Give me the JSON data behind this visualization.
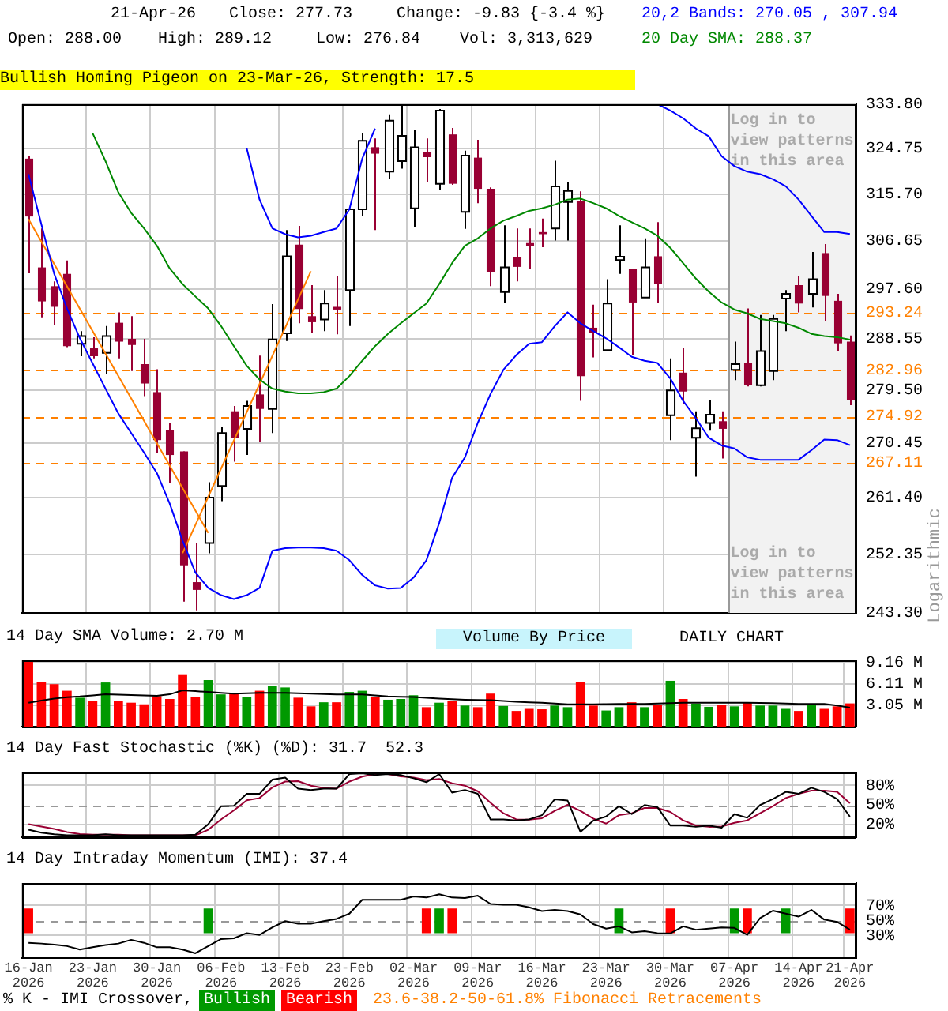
{
  "chart_data": [
    {
      "type": "candlestick",
      "ylabel": "Logarithmic",
      "log": "y",
      "grid": true,
      "tick_labels": "y",
      "legend": "top right",
      "annotations": [
        "21-Apr-26",
        "Close: 277.73",
        "Change: -9.83 {-3.4 %}",
        "Open: 288.00",
        "High: 289.12",
        "Low: 276.84",
        "Vol: 3,313,629",
        "Bullish Homing Pigeon on 23-Mar-26, Strength: 17.5"
      ],
      "categories": [
        "16-Jan\n2026",
        null,
        null,
        null,
        null,
        "23-Jan\n2026",
        null,
        null,
        null,
        null,
        "30-Jan\n2026",
        null,
        null,
        null,
        null,
        "06-Feb\n2026",
        null,
        null,
        null,
        null,
        "13-Feb\n2026",
        null,
        null,
        null,
        null,
        "23-Feb\n2026",
        null,
        null,
        null,
        null,
        "02-Mar\n2026",
        null,
        null,
        null,
        null,
        "09-Mar\n2026",
        null,
        null,
        null,
        null,
        "16-Mar\n2026",
        null,
        null,
        null,
        null,
        "23-Mar\n2026",
        null,
        null,
        null,
        null,
        "30-Mar\n2026",
        null,
        null,
        null,
        null,
        "07-Apr\n2026",
        null,
        null,
        null,
        null,
        "14-Apr\n2026",
        null,
        null,
        null,
        "21-Apr\n2026"
      ],
      "ylim": [
        243.3,
        333.8
      ],
      "yticks": [
        {
          "value": 243.3,
          "label": "243.30"
        },
        252.35,
        {
          "value": 261.4,
          "label": "261.40"
        },
        270.45,
        {
          "value": 279.5,
          "label": "279.50"
        },
        288.55,
        {
          "value": 297.6,
          "label": "297.60"
        },
        306.65,
        {
          "value": 315.7,
          "label": "315.70"
        },
        324.75,
        {
          "value": 333.8,
          "label": "333.80"
        }
      ],
      "ohlc": [
        [
          322.7,
          323.2,
          300.5,
          311.3
        ],
        [
          301.6,
          309.0,
          292.4,
          295.3
        ],
        [
          298.1,
          299.0,
          291.0,
          294.3
        ],
        [
          300.4,
          302.9,
          287.0,
          287.2
        ],
        [
          287.6,
          289.9,
          285.4,
          289.0
        ],
        [
          286.8,
          288.8,
          285.0,
          285.4
        ],
        [
          286.0,
          290.8,
          282.2,
          289.0
        ],
        [
          291.4,
          293.3,
          285.0,
          288.0
        ],
        [
          288.5,
          292.6,
          282.8,
          287.4
        ],
        [
          284.0,
          288.5,
          278.4,
          280.6
        ],
        [
          279.1,
          283.1,
          268.8,
          270.9
        ],
        [
          272.6,
          273.8,
          263.7,
          268.4
        ],
        [
          269.0,
          269.0,
          245.0,
          250.6
        ],
        [
          248.0,
          254.1,
          243.7,
          246.8
        ],
        [
          254.1,
          263.9,
          252.5,
          261.4
        ],
        [
          263.3,
          273.1,
          260.8,
          272.1
        ],
        [
          275.8,
          276.7,
          267.3,
          271.3
        ],
        [
          272.8,
          277.6,
          268.4,
          276.7
        ],
        [
          278.7,
          285.5,
          270.6,
          276.2
        ],
        [
          276.2,
          294.8,
          272.1,
          288.4
        ],
        [
          289.5,
          308.7,
          288.1,
          303.7
        ],
        [
          305.9,
          309.5,
          291.3,
          293.9
        ],
        [
          292.6,
          298.3,
          289.5,
          291.5
        ],
        [
          292.0,
          297.4,
          289.9,
          294.9
        ],
        [
          294.3,
          299.9,
          289.3,
          293.8
        ],
        [
          297.4,
          312.9,
          290.8,
          312.7
        ],
        [
          312.7,
          327.8,
          311.3,
          326.3
        ],
        [
          325.0,
          326.8,
          308.7,
          323.7
        ],
        [
          320.1,
          331.7,
          318.6,
          330.4
        ],
        [
          322.2,
          333.8,
          320.7,
          327.3
        ],
        [
          312.9,
          328.6,
          309.2,
          325.0
        ],
        [
          324.0,
          326.8,
          318.0,
          323.0
        ],
        [
          317.7,
          332.8,
          316.5,
          332.5
        ],
        [
          327.6,
          328.9,
          317.5,
          317.7
        ],
        [
          312.2,
          324.3,
          308.9,
          323.3
        ],
        [
          322.9,
          326.5,
          313.9,
          316.7
        ],
        [
          316.7,
          317.0,
          298.1,
          300.7
        ],
        [
          297.0,
          309.6,
          295.1,
          301.6
        ],
        [
          303.6,
          309.0,
          299.0,
          301.7
        ],
        [
          306.2,
          309.0,
          301.3,
          305.7
        ],
        [
          308.3,
          310.9,
          305.4,
          307.9
        ],
        [
          309.0,
          322.3,
          306.7,
          317.2
        ],
        [
          314.1,
          318.1,
          306.7,
          316.3
        ],
        [
          314.4,
          316.2,
          277.6,
          281.9
        ],
        [
          290.5,
          294.7,
          285.2,
          289.6
        ],
        [
          286.5,
          299.4,
          286.5,
          294.9
        ],
        [
          303.0,
          309.6,
          300.4,
          303.6
        ],
        [
          301.3,
          301.3,
          285.6,
          295.1
        ],
        [
          296.0,
          307.1,
          296.0,
          301.6
        ],
        [
          303.7,
          310.2,
          295.1,
          298.5
        ],
        [
          275.1,
          285.0,
          270.9,
          279.4
        ],
        [
          282.5,
          286.8,
          277.1,
          279.2
        ],
        [
          271.3,
          275.8,
          264.8,
          272.9
        ],
        [
          273.8,
          277.8,
          272.5,
          275.2
        ],
        [
          274.1,
          275.8,
          267.8,
          272.8
        ],
        [
          283.0,
          288.0,
          281.2,
          284.0
        ],
        [
          284.2,
          294.0,
          280.1,
          280.3
        ],
        [
          280.3,
          292.8,
          280.1,
          286.3
        ],
        [
          282.8,
          292.8,
          281.2,
          292.1
        ],
        [
          295.8,
          297.4,
          289.9,
          296.7
        ],
        [
          298.3,
          299.9,
          293.3,
          294.9
        ],
        [
          296.7,
          304.5,
          294.2,
          299.4
        ],
        [
          304.3,
          306.0,
          291.7,
          296.3
        ],
        [
          295.4,
          296.7,
          286.3,
          287.7
        ],
        [
          288.0,
          289.12,
          276.84,
          277.73
        ]
      ],
      "series": [
        {
          "type": "line",
          "color": "#0000ff",
          "values": [
            null,
            null,
            null,
            null,
            null,
            null,
            null,
            null,
            null,
            null,
            null,
            null,
            null,
            null,
            null,
            null,
            null,
            324.8,
            314.6,
            309.0,
            307.9,
            307.3,
            307.6,
            308.3,
            309.0,
            312.7,
            322.7,
            328.8,
            null,
            null,
            null,
            null,
            null,
            null,
            null,
            null,
            null,
            null,
            null,
            null,
            null,
            null,
            null,
            null,
            null,
            null,
            null,
            null,
            null,
            333.8,
            332.5,
            330.9,
            328.8,
            327.2,
            323.2,
            321.2,
            320.1,
            319.6,
            318.6,
            317.2,
            314.6,
            311.4,
            308.3,
            308.3,
            307.94
          ]
        },
        {
          "type": "line",
          "name": "20,2 Bands: 270.05 , 307.94",
          "color": "#0000ff",
          "values": [
            319.6,
            309.8,
            300.4,
            294.0,
            288.6,
            284.1,
            279.7,
            275.4,
            272.1,
            268.8,
            265.4,
            260.4,
            254.5,
            249.5,
            247.1,
            246.0,
            245.4,
            246.0,
            247.1,
            252.9,
            253.3,
            253.4,
            253.4,
            253.3,
            252.9,
            251.4,
            249.1,
            247.5,
            247.0,
            247.1,
            248.7,
            251.4,
            257.3,
            264.6,
            268.0,
            273.8,
            278.8,
            283.0,
            285.6,
            287.6,
            287.9,
            290.8,
            293.3,
            291.3,
            289.9,
            288.6,
            287.0,
            285.3,
            284.6,
            284.2,
            281.5,
            277.6,
            274.6,
            271.3,
            270.0,
            269.5,
            268.0,
            267.6,
            267.6,
            267.6,
            267.6,
            269.2,
            271.0,
            270.9,
            270.05
          ]
        },
        {
          "type": "line",
          "name": "20 Day SMA: 288.37",
          "color": "#008800",
          "values": [
            null,
            null,
            null,
            null,
            null,
            327.8,
            322.2,
            316.0,
            312.0,
            309.0,
            305.7,
            301.4,
            298.5,
            296.2,
            294.0,
            290.8,
            287.2,
            283.7,
            281.3,
            279.7,
            279.2,
            278.9,
            278.9,
            279.1,
            279.7,
            281.9,
            284.6,
            287.2,
            289.4,
            291.3,
            293.1,
            294.9,
            298.5,
            302.4,
            305.7,
            307.1,
            309.0,
            310.5,
            311.4,
            312.4,
            312.9,
            313.6,
            314.6,
            314.8,
            313.9,
            312.9,
            311.4,
            310.2,
            309.0,
            307.6,
            305.3,
            302.4,
            299.5,
            297.1,
            295.1,
            293.8,
            293.1,
            292.1,
            291.7,
            291.3,
            290.5,
            289.4,
            289.0,
            288.8,
            288.37
          ]
        },
        {
          "type": "line",
          "color": "#ff8000",
          "values": [
            310.8,
            null,
            null,
            null,
            null,
            null,
            null,
            null,
            null,
            null,
            null,
            null,
            null,
            null,
            255.7,
            null,
            null,
            null,
            null,
            null,
            null,
            null,
            null,
            null,
            null,
            null,
            null,
            null,
            null,
            null,
            null,
            null,
            null,
            null,
            null,
            null,
            null,
            null,
            null,
            null,
            null,
            null,
            null,
            null,
            null,
            null,
            null,
            null,
            null,
            null,
            null,
            null,
            null,
            null,
            null,
            null,
            null,
            null,
            null,
            null,
            null,
            null,
            null,
            null,
            null
          ]
        },
        {
          "type": "line",
          "color": "#ff8000",
          "values": [
            null,
            null,
            null,
            null,
            null,
            null,
            null,
            null,
            null,
            null,
            null,
            null,
            252.5,
            null,
            null,
            null,
            null,
            null,
            null,
            null,
            null,
            null,
            300.9,
            null,
            null,
            null,
            null,
            null,
            null,
            null,
            null,
            null,
            null,
            null,
            null,
            null,
            null,
            null,
            null,
            null,
            null,
            null,
            null,
            null,
            null,
            null,
            null,
            null,
            null,
            null,
            null,
            null,
            null,
            null,
            null,
            null,
            null,
            null,
            null,
            null,
            null,
            null,
            null,
            null,
            null
          ]
        }
      ],
      "ref_lines": [
        {
          "axis": "y",
          "value": 293.24,
          "label": "293.24",
          "color": "#ff8000",
          "line_style": "dashed"
        },
        {
          "axis": "y",
          "value": 282.96,
          "label": "282.96",
          "color": "#ff8000",
          "line_style": "dashed"
        },
        {
          "axis": "y",
          "value": 274.92,
          "label": "274.92",
          "color": "#ff8000",
          "line_style": "dashed"
        },
        {
          "axis": "y",
          "value": 267.11,
          "label": "267.11",
          "color": "#ff8000",
          "line_style": "dashed"
        }
      ],
      "bands": [
        {
          "axis": "x",
          "from": "07-Apr\n2026",
          "to": "21-Apr\n2026",
          "label": "Log in to view patterns in this area",
          "color": "#f2f2f2"
        }
      ]
    },
    {
      "type": "bar",
      "title": "14 Day SMA Volume: 2.70 M",
      "grid": true,
      "tick_labels": "y",
      "annotations": [
        "Volume By Price",
        "DAILY CHART"
      ],
      "categories": [
        "16-Jan\n2026",
        null,
        null,
        null,
        null,
        "23-Jan\n2026",
        null,
        null,
        null,
        null,
        "30-Jan\n2026",
        null,
        null,
        null,
        null,
        "06-Feb\n2026",
        null,
        null,
        null,
        null,
        "13-Feb\n2026",
        null,
        null,
        null,
        null,
        "23-Feb\n2026",
        null,
        null,
        null,
        null,
        "02-Mar\n2026",
        null,
        null,
        null,
        null,
        "09-Mar\n2026",
        null,
        null,
        null,
        null,
        "16-Mar\n2026",
        null,
        null,
        null,
        null,
        "23-Mar\n2026",
        null,
        null,
        null,
        null,
        "30-Mar\n2026",
        null,
        null,
        null,
        null,
        "07-Apr\n2026",
        null,
        null,
        null,
        null,
        "14-Apr\n2026",
        null,
        null,
        null,
        "21-Apr\n2026"
      ],
      "ylim": [
        0,
        9.45
      ],
      "yticks": [
        {
          "value": 3.05,
          "label": "3.05 M"
        },
        {
          "value": 6.11,
          "label": "6.11 M"
        },
        {
          "value": 9.16,
          "label": "9.16 M"
        }
      ],
      "series": [
        {
          "type": "bar",
          "values": [
            9.3,
            6.34,
            6.05,
            5.11,
            4.12,
            3.65,
            6.29,
            3.65,
            3.41,
            3.18,
            4.35,
            3.94,
            7.46,
            4.23,
            6.64,
            4.59,
            4.82,
            4.23,
            5.11,
            5.76,
            5.58,
            4.12,
            2.89,
            3.47,
            3.47,
            4.94,
            5.11,
            4.23,
            3.83,
            3.94,
            4.47,
            2.77,
            3.41,
            3.65,
            3.0,
            2.77,
            4.7,
            2.94,
            2.24,
            2.53,
            2.47,
            3.0,
            2.77,
            6.34,
            3.0,
            2.3,
            2.77,
            3.47,
            2.77,
            3.13,
            6.53,
            3.94,
            3.29,
            2.82,
            3.06,
            2.89,
            3.41,
            3.0,
            3.0,
            2.53,
            2.24,
            3.18,
            2.53,
            2.89,
            3.31
          ],
          "colors": [
            "#ff0000",
            "#ff0000",
            "#ff0000",
            "#ff0000",
            "#009900",
            "#ff0000",
            "#009900",
            "#ff0000",
            "#ff0000",
            "#ff0000",
            "#ff0000",
            "#ff0000",
            "#ff0000",
            "#ff0000",
            "#009900",
            "#009900",
            "#ff0000",
            "#009900",
            "#ff0000",
            "#009900",
            "#009900",
            "#ff0000",
            "#ff0000",
            "#009900",
            "#ff0000",
            "#009900",
            "#009900",
            "#ff0000",
            "#009900",
            "#009900",
            "#009900",
            "#ff0000",
            "#009900",
            "#ff0000",
            "#009900",
            "#ff0000",
            "#ff0000",
            "#009900",
            "#ff0000",
            "#ff0000",
            "#ff0000",
            "#009900",
            "#009900",
            "#ff0000",
            "#ff0000",
            "#009900",
            "#009900",
            "#ff0000",
            "#009900",
            "#ff0000",
            "#009900",
            "#ff0000",
            "#009900",
            "#009900",
            "#ff0000",
            "#009900",
            "#ff0000",
            "#009900",
            "#009900",
            "#009900",
            "#ff0000",
            "#009900",
            "#ff0000",
            "#ff0000",
            "#ff0000"
          ]
        },
        {
          "type": "line",
          "color": "#000000",
          "values": [
            3.4,
            3.7,
            4.0,
            4.2,
            4.3,
            4.45,
            4.6,
            4.55,
            4.5,
            4.45,
            4.4,
            4.6,
            5.17,
            5.05,
            4.94,
            4.82,
            4.7,
            4.76,
            4.82,
            4.82,
            4.82,
            4.76,
            4.7,
            4.65,
            4.59,
            4.59,
            4.59,
            4.45,
            4.3,
            4.26,
            4.23,
            4.1,
            4.0,
            3.9,
            3.83,
            3.8,
            3.77,
            3.65,
            3.53,
            3.47,
            3.41,
            3.3,
            3.18,
            3.18,
            3.18,
            3.2,
            3.24,
            3.24,
            3.24,
            3.3,
            3.36,
            3.4,
            3.41,
            3.41,
            3.41,
            3.41,
            3.41,
            3.38,
            3.36,
            3.3,
            3.24,
            3.24,
            3.24,
            3.0,
            2.7
          ]
        }
      ]
    },
    {
      "type": "line",
      "title": "14 Day Fast Stochastic (%K) (%D): 31.7  52.3",
      "grid": true,
      "tick_labels": "y",
      "categories": [
        "16-Jan\n2026",
        null,
        null,
        null,
        null,
        "23-Jan\n2026",
        null,
        null,
        null,
        null,
        "30-Jan\n2026",
        null,
        null,
        null,
        null,
        "06-Feb\n2026",
        null,
        null,
        null,
        null,
        "13-Feb\n2026",
        null,
        null,
        null,
        null,
        "23-Feb\n2026",
        null,
        null,
        null,
        null,
        "02-Mar\n2026",
        null,
        null,
        null,
        null,
        "09-Mar\n2026",
        null,
        null,
        null,
        null,
        "16-Mar\n2026",
        null,
        null,
        null,
        null,
        "23-Mar\n2026",
        null,
        null,
        null,
        null,
        "30-Mar\n2026",
        null,
        null,
        null,
        null,
        "07-Apr\n2026",
        null,
        null,
        null,
        null,
        "14-Apr\n2026",
        null,
        null,
        null,
        "21-Apr\n2026"
      ],
      "ylim": [
        0,
        100
      ],
      "yticks": [
        {
          "value": 20,
          "label": "20%"
        },
        {
          "value": 50,
          "label": "50%"
        },
        {
          "value": 80,
          "label": "80%"
        }
      ],
      "ref_lines": [
        {
          "axis": "y",
          "value": 50,
          "color": "#999999",
          "line_style": "dashed"
        }
      ],
      "series": [
        {
          "color": "#000000",
          "values": [
            11.5,
            7,
            4.5,
            3,
            3,
            3,
            4.5,
            3,
            3,
            3,
            3,
            3,
            3,
            4,
            20,
            48,
            48.5,
            67,
            67,
            89,
            92,
            75,
            73,
            75,
            75,
            97.5,
            98.7,
            96,
            97.5,
            96,
            91,
            85,
            97.5,
            69,
            73,
            67,
            27.5,
            27.5,
            26,
            27.5,
            34,
            58.6,
            56.7,
            8.3,
            25.5,
            32,
            48,
            35.7,
            49.7,
            46.5,
            18,
            18,
            16,
            18,
            14.6,
            35.7,
            30,
            49.7,
            59,
            70,
            67,
            76.4,
            70,
            59,
            31.7
          ]
        },
        {
          "color": "#990033",
          "values": [
            20,
            16.5,
            12.7,
            8,
            5,
            4,
            4,
            4,
            3,
            3,
            3,
            3,
            3,
            3,
            11.5,
            27.5,
            41.4,
            57,
            60.5,
            77,
            86,
            86.6,
            79.6,
            76,
            75,
            86,
            93.6,
            97.5,
            97.5,
            94,
            92,
            88,
            90,
            83.4,
            79.6,
            71,
            53,
            37,
            27.5,
            27,
            29.3,
            40.8,
            50,
            40.8,
            28.7,
            21,
            34,
            37,
            45.2,
            45.2,
            39,
            26,
            18,
            16,
            16.5,
            22.3,
            26,
            37,
            48,
            60.5,
            67,
            72,
            72,
            70,
            52.3
          ]
        }
      ]
    },
    {
      "type": "line",
      "title": "14 Day Intraday Momentum (IMI): 37.4",
      "grid": true,
      "legend": "bottom",
      "annotations": [
        "% K - IMI Crossover,",
        "23.6-38.2-50-61.8% Fibonacci Retracements"
      ],
      "categories": [
        "16-Jan\n2026",
        null,
        null,
        null,
        null,
        "23-Jan\n2026",
        null,
        null,
        null,
        null,
        "30-Jan\n2026",
        null,
        null,
        null,
        null,
        "06-Feb\n2026",
        null,
        null,
        null,
        null,
        "13-Feb\n2026",
        null,
        null,
        null,
        null,
        "23-Feb\n2026",
        null,
        null,
        null,
        null,
        "02-Mar\n2026",
        null,
        null,
        null,
        null,
        "09-Mar\n2026",
        null,
        null,
        null,
        null,
        "16-Mar\n2026",
        null,
        null,
        null,
        null,
        "23-Mar\n2026",
        null,
        null,
        null,
        null,
        "30-Mar\n2026",
        null,
        null,
        null,
        null,
        "07-Apr\n2026",
        null,
        null,
        null,
        null,
        "14-Apr\n2026",
        null,
        null,
        null,
        "21-Apr\n2026"
      ],
      "ylim": [
        0,
        100
      ],
      "yticks": [
        {
          "value": 30,
          "label": "30%"
        },
        {
          "value": 50,
          "label": "50%"
        },
        {
          "value": 70,
          "label": "70%"
        }
      ],
      "ref_lines": [
        {
          "axis": "y",
          "value": 50,
          "color": "#999999",
          "line_style": "dashed"
        }
      ],
      "series": [
        {
          "type": "line",
          "color": "#000000",
          "values": [
            20,
            19,
            17.5,
            15.6,
            11,
            14,
            17,
            19,
            24,
            20,
            14,
            14,
            11,
            6,
            15.6,
            25,
            26,
            33,
            30.6,
            40.6,
            49,
            45.6,
            45.6,
            49,
            52,
            59,
            77.5,
            77.5,
            77.5,
            77.5,
            82,
            80.6,
            85,
            80.6,
            80,
            83,
            72,
            71,
            71,
            67.5,
            62.5,
            64,
            62.5,
            58,
            45,
            39,
            42,
            34,
            35.6,
            33,
            32.5,
            42,
            37.5,
            39,
            40.6,
            40,
            30.6,
            53,
            63,
            59,
            55,
            64,
            51,
            48,
            37.4
          ]
        },
        {
          "type": "bar",
          "name": "Bullish",
          "color": "#009900",
          "values": [
            null,
            null,
            null,
            null,
            null,
            null,
            null,
            null,
            null,
            null,
            null,
            null,
            null,
            null,
            33,
            null,
            null,
            null,
            null,
            null,
            null,
            null,
            null,
            null,
            null,
            null,
            null,
            null,
            null,
            null,
            null,
            null,
            33,
            null,
            null,
            null,
            null,
            null,
            null,
            null,
            null,
            null,
            null,
            null,
            null,
            null,
            33,
            null,
            null,
            null,
            null,
            null,
            null,
            null,
            null,
            33,
            null,
            null,
            null,
            33,
            null,
            null,
            null,
            null,
            null
          ],
          "base": [
            null,
            null,
            null,
            null,
            null,
            null,
            null,
            null,
            null,
            null,
            null,
            null,
            null,
            null,
            33,
            null,
            null,
            null,
            null,
            null,
            null,
            null,
            null,
            null,
            null,
            null,
            null,
            null,
            null,
            null,
            null,
            null,
            33,
            null,
            null,
            null,
            null,
            null,
            null,
            null,
            null,
            null,
            null,
            null,
            null,
            null,
            33,
            null,
            null,
            null,
            null,
            null,
            null,
            null,
            null,
            33,
            null,
            null,
            null,
            33,
            null,
            null,
            null,
            null,
            null
          ]
        },
        {
          "type": "bar",
          "name": "Bearish",
          "color": "#ff0000",
          "values": [
            33,
            null,
            null,
            null,
            null,
            null,
            null,
            null,
            null,
            null,
            null,
            null,
            null,
            null,
            null,
            null,
            null,
            null,
            null,
            null,
            null,
            null,
            null,
            null,
            null,
            null,
            null,
            null,
            null,
            null,
            null,
            33,
            null,
            33,
            null,
            null,
            null,
            null,
            null,
            null,
            null,
            null,
            null,
            null,
            null,
            null,
            null,
            null,
            null,
            null,
            33,
            null,
            null,
            null,
            null,
            null,
            33,
            null,
            null,
            null,
            null,
            null,
            null,
            null,
            33
          ],
          "base": [
            33,
            null,
            null,
            null,
            null,
            null,
            null,
            null,
            null,
            null,
            null,
            null,
            null,
            null,
            null,
            null,
            null,
            null,
            null,
            null,
            null,
            null,
            null,
            null,
            null,
            null,
            null,
            null,
            null,
            null,
            null,
            33,
            null,
            33,
            null,
            null,
            null,
            null,
            null,
            null,
            null,
            null,
            null,
            null,
            null,
            null,
            null,
            null,
            null,
            null,
            33,
            null,
            null,
            null,
            null,
            null,
            33,
            null,
            null,
            null,
            null,
            null,
            null,
            null,
            33
          ]
        }
      ]
    }
  ]
}
